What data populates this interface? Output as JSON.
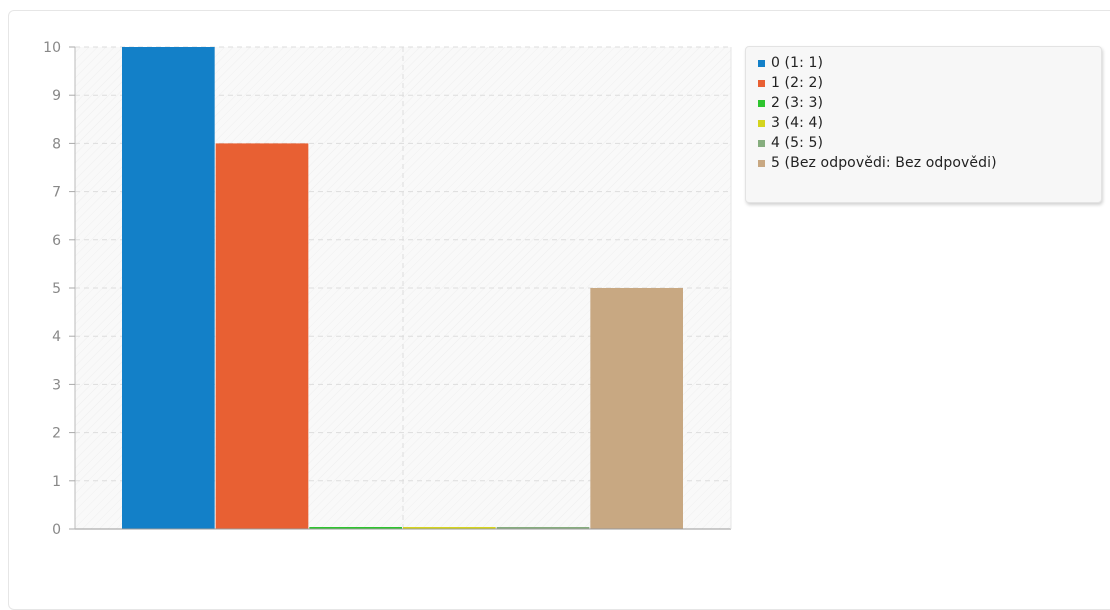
{
  "chart_data": {
    "type": "bar",
    "categories": [
      "0",
      "1",
      "2",
      "3",
      "4",
      "5"
    ],
    "values": [
      10,
      8,
      0,
      0,
      0,
      5
    ],
    "colors": [
      "#1380c8",
      "#e86033",
      "#2ec42e",
      "#d4d41e",
      "#86ad7e",
      "#c8a882"
    ],
    "legend": [
      "0 (1: 1)",
      "1 (2: 2)",
      "2 (3: 3)",
      "3 (4: 4)",
      "4 (5: 5)",
      "5 (Bez odpovědi: Bez odpovědi)"
    ],
    "yticks": [
      "0",
      "1",
      "2",
      "3",
      "4",
      "5",
      "6",
      "7",
      "8",
      "9",
      "10"
    ],
    "ylim": [
      0,
      10
    ],
    "grid": true,
    "legend_position": "top-right",
    "title": "",
    "xlabel": "",
    "ylabel": ""
  }
}
